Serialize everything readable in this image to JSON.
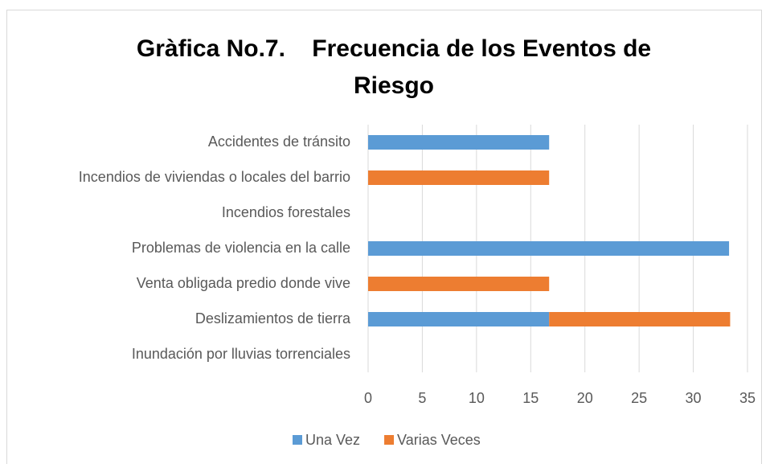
{
  "chart_data": {
    "type": "stacked_barh",
    "title": "Gràfica No.7.    Frecuencia de los Eventos de Riesgo",
    "categories": [
      "Accidentes de tránsito",
      "Incendios de viviendas o locales del barrio",
      "Incendios forestales",
      "Problemas de violencia en la calle",
      "Venta obligada predio donde vive",
      "Deslizamientos de tierra",
      "Inundación por lluvias torrenciales"
    ],
    "series": [
      {
        "name": "Una Vez",
        "color": "#5b9bd5",
        "values": [
          16.7,
          0,
          0,
          33.3,
          0,
          16.7,
          0
        ]
      },
      {
        "name": "Varias Veces",
        "color": "#ed7d31",
        "values": [
          0,
          16.7,
          0,
          0,
          16.7,
          16.7,
          0
        ]
      }
    ],
    "xlim": [
      0,
      35
    ],
    "xticks": [
      0,
      5,
      10,
      15,
      20,
      25,
      30,
      35
    ],
    "grid": true,
    "legend": "bottom"
  }
}
